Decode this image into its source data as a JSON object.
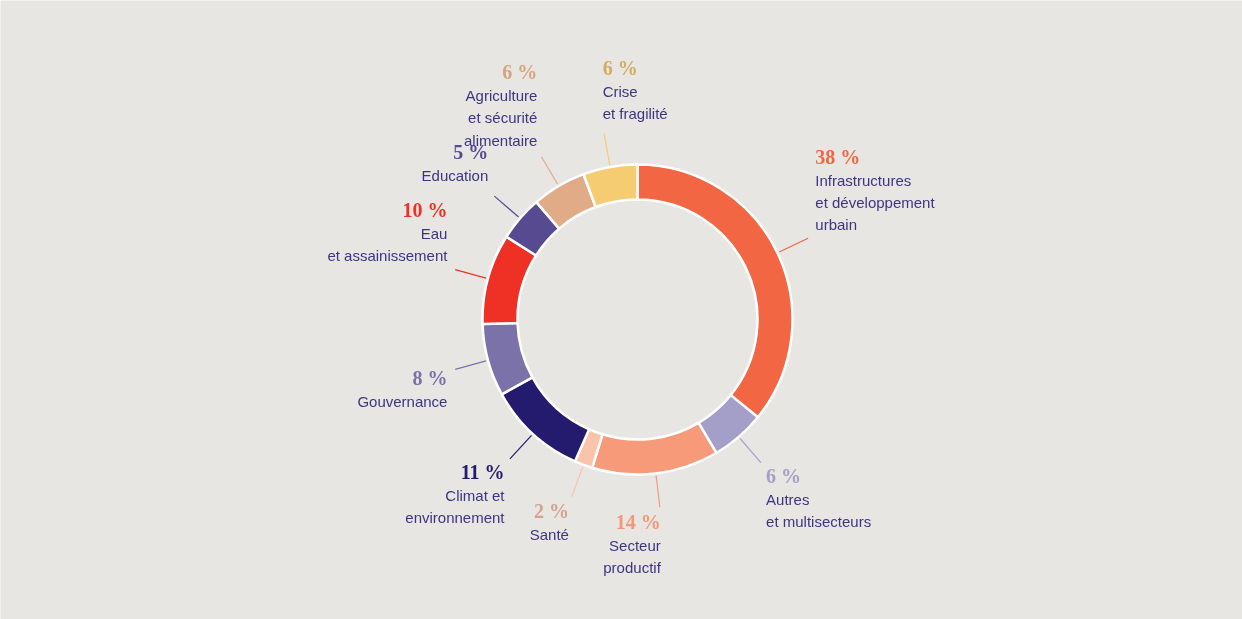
{
  "chart_data": {
    "type": "donut",
    "categories": [
      "Infrastructures\net développement\nurbain",
      "Autres\net multisecteurs",
      "Secteur\nproductif",
      "Santé",
      "Climat et\nenvironnement",
      "Gouvernance",
      "Eau\net assainissement",
      "Education",
      "Agriculture\net sécurité\nalimentaire",
      "Crise\net fragilité"
    ],
    "values": [
      38,
      6,
      14,
      2,
      11,
      8,
      10,
      5,
      6,
      6
    ],
    "value_labels": [
      "38 %",
      "6 %",
      "14 %",
      "2 %",
      "11 %",
      "8 %",
      "10 %",
      "5 %",
      "6 %",
      "6 %"
    ],
    "colors": [
      "#f26644",
      "#a49fc8",
      "#f79a7a",
      "#fbc3aa",
      "#251b6e",
      "#7b72aa",
      "#ee3124",
      "#574a90",
      "#e2ab88",
      "#f5cc72"
    ],
    "legend": false
  }
}
